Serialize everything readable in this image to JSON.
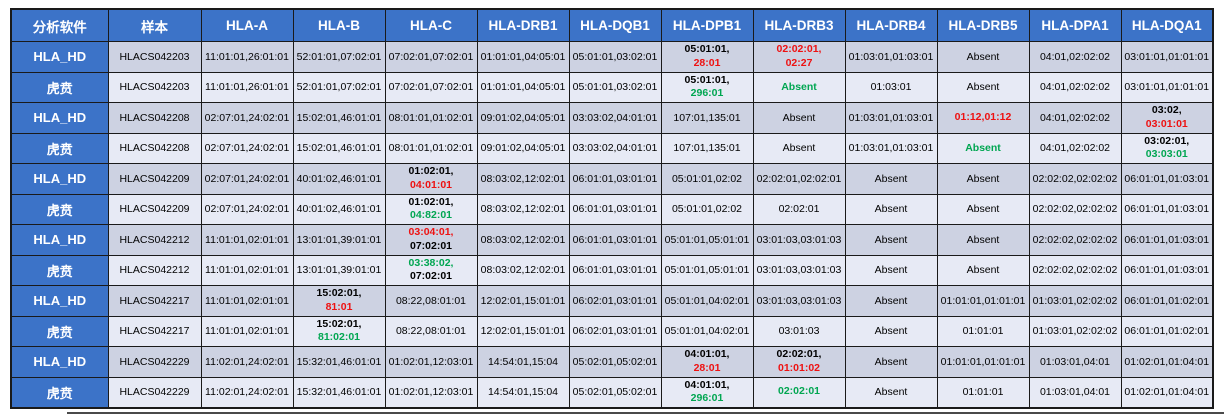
{
  "colors": {
    "header_bg": "#3C73C8",
    "header_text": "#FFFFFF",
    "row_dark": "#CDD2E2",
    "row_light": "#E7EAF5",
    "border": "#1A1A1A",
    "text": "#000000",
    "red": "#EE1111",
    "green": "#00A651"
  },
  "chart_data": {
    "type": "table",
    "title": "",
    "columns": [
      "分析软件",
      "样本",
      "HLA-A",
      "HLA-B",
      "HLA-C",
      "HLA-DRB1",
      "HLA-DQB1",
      "HLA-DPB1",
      "HLA-DRB3",
      "HLA-DRB4",
      "HLA-DRB5",
      "HLA-DPA1",
      "HLA-DQA1"
    ],
    "style_legend": {
      "plain": "normal black",
      "bold": "bold black",
      "red": "bold red (discordant call)",
      "green": "bold green (alternate call)"
    },
    "rows": [
      {
        "software": "HLA_HD",
        "sample": "HLACS042203",
        "cells": [
          "11:01:01,26:01:01",
          "52:01:01,07:02:01",
          "07:02:01,07:02:01",
          "01:01:01,04:05:01",
          "05:01:01,03:02:01",
          [
            {
              "t": "05:01:01,",
              "s": "bold"
            },
            {
              "t": "28:01",
              "s": "red"
            }
          ],
          [
            {
              "t": "02:02:01,",
              "s": "red"
            },
            {
              "t": "02:27",
              "s": "red"
            }
          ],
          "01:03:01,01:03:01",
          "Absent",
          "04:01,02:02:02",
          "03:01:01,01:01:01"
        ]
      },
      {
        "software": "虎贲",
        "sample": "HLACS042203",
        "cells": [
          "11:01:01,26:01:01",
          "52:01:01,07:02:01",
          "07:02:01,07:02:01",
          "01:01:01,04:05:01",
          "05:01:01,03:02:01",
          [
            {
              "t": "05:01:01,",
              "s": "bold"
            },
            {
              "t": "296:01",
              "s": "green"
            }
          ],
          [
            {
              "t": "Absent",
              "s": "green"
            }
          ],
          "01:03:01",
          "Absent",
          "04:01,02:02:02",
          "03:01:01,01:01:01"
        ]
      },
      {
        "software": "HLA_HD",
        "sample": "HLACS042208",
        "cells": [
          "02:07:01,24:02:01",
          "15:02:01,46:01:01",
          "08:01:01,01:02:01",
          "09:01:02,04:05:01",
          "03:03:02,04:01:01",
          "107:01,135:01",
          "Absent",
          "01:03:01,01:03:01",
          [
            {
              "t": "01:12,01:12",
              "s": "red"
            }
          ],
          "04:01,02:02:02",
          [
            {
              "t": "03:02,",
              "s": "bold"
            },
            {
              "t": "03:01:01",
              "s": "red"
            }
          ]
        ]
      },
      {
        "software": "虎贲",
        "sample": "HLACS042208",
        "cells": [
          "02:07:01,24:02:01",
          "15:02:01,46:01:01",
          "08:01:01,01:02:01",
          "09:01:02,04:05:01",
          "03:03:02,04:01:01",
          "107:01,135:01",
          "Absent",
          "01:03:01,01:03:01",
          [
            {
              "t": "Absent",
              "s": "green"
            }
          ],
          "04:01,02:02:02",
          [
            {
              "t": "03:02:01,",
              "s": "bold"
            },
            {
              "t": "03:03:01",
              "s": "green"
            }
          ]
        ]
      },
      {
        "software": "HLA_HD",
        "sample": "HLACS042209",
        "cells": [
          "02:07:01,24:02:01",
          "40:01:02,46:01:01",
          [
            {
              "t": "01:02:01,",
              "s": "bold"
            },
            {
              "t": "04:01:01",
              "s": "red"
            }
          ],
          "08:03:02,12:02:01",
          "06:01:01,03:01:01",
          "05:01:01,02:02",
          "02:02:01,02:02:01",
          "Absent",
          "Absent",
          "02:02:02,02:02:02",
          "06:01:01,01:03:01"
        ]
      },
      {
        "software": "虎贲",
        "sample": "HLACS042209",
        "cells": [
          "02:07:01,24:02:01",
          "40:01:02,46:01:01",
          [
            {
              "t": "01:02:01,",
              "s": "bold"
            },
            {
              "t": "04:82:01",
              "s": "green"
            }
          ],
          "08:03:02,12:02:01",
          "06:01:01,03:01:01",
          "05:01:01,02:02",
          "02:02:01",
          "Absent",
          "Absent",
          "02:02:02,02:02:02",
          "06:01:01,01:03:01"
        ]
      },
      {
        "software": "HLA_HD",
        "sample": "HLACS042212",
        "cells": [
          "11:01:01,02:01:01",
          "13:01:01,39:01:01",
          [
            {
              "t": "03:04:01,",
              "s": "red"
            },
            {
              "t": "07:02:01",
              "s": "bold"
            }
          ],
          "08:03:02,12:02:01",
          "06:01:01,03:01:01",
          "05:01:01,05:01:01",
          "03:01:03,03:01:03",
          "Absent",
          "Absent",
          "02:02:02,02:02:02",
          "06:01:01,01:03:01"
        ]
      },
      {
        "software": "虎贲",
        "sample": "HLACS042212",
        "cells": [
          "11:01:01,02:01:01",
          "13:01:01,39:01:01",
          [
            {
              "t": "03:38:02,",
              "s": "green"
            },
            {
              "t": "07:02:01",
              "s": "bold"
            }
          ],
          "08:03:02,12:02:01",
          "06:01:01,03:01:01",
          "05:01:01,05:01:01",
          "03:01:03,03:01:03",
          "Absent",
          "Absent",
          "02:02:02,02:02:02",
          "06:01:01,01:03:01"
        ]
      },
      {
        "software": "HLA_HD",
        "sample": "HLACS042217",
        "cells": [
          "11:01:01,02:01:01",
          [
            {
              "t": "15:02:01,",
              "s": "bold"
            },
            {
              "t": "81:01",
              "s": "red"
            }
          ],
          "08:22,08:01:01",
          "12:02:01,15:01:01",
          "06:02:01,03:01:01",
          "05:01:01,04:02:01",
          "03:01:03,03:01:03",
          "Absent",
          "01:01:01,01:01:01",
          "01:03:01,02:02:02",
          "06:01:01,01:02:01"
        ]
      },
      {
        "software": "虎贲",
        "sample": "HLACS042217",
        "cells": [
          "11:01:01,02:01:01",
          [
            {
              "t": "15:02:01,",
              "s": "bold"
            },
            {
              "t": "81:02:01",
              "s": "green"
            }
          ],
          "08:22,08:01:01",
          "12:02:01,15:01:01",
          "06:02:01,03:01:01",
          "05:01:01,04:02:01",
          "03:01:03",
          "Absent",
          "01:01:01",
          "01:03:01,02:02:02",
          "06:01:01,01:02:01"
        ]
      },
      {
        "software": "HLA_HD",
        "sample": "HLACS042229",
        "cells": [
          "11:02:01,24:02:01",
          "15:32:01,46:01:01",
          "01:02:01,12:03:01",
          "14:54:01,15:04",
          "05:02:01,05:02:01",
          [
            {
              "t": "04:01:01,",
              "s": "bold"
            },
            {
              "t": "28:01",
              "s": "red"
            }
          ],
          [
            {
              "t": "02:02:01,",
              "s": "bold"
            },
            {
              "t": "01:01:02",
              "s": "red"
            }
          ],
          "Absent",
          "01:01:01,01:01:01",
          "01:03:01,04:01",
          "01:02:01,01:04:01"
        ]
      },
      {
        "software": "虎贲",
        "sample": "HLACS042229",
        "cells": [
          "11:02:01,24:02:01",
          "15:32:01,46:01:01",
          "01:02:01,12:03:01",
          "14:54:01,15:04",
          "05:02:01,05:02:01",
          [
            {
              "t": "04:01:01,",
              "s": "bold"
            },
            {
              "t": "296:01",
              "s": "green"
            }
          ],
          [
            {
              "t": "02:02:01",
              "s": "green"
            }
          ],
          "Absent",
          "01:01:01",
          "01:03:01,04:01",
          "01:02:01,01:04:01"
        ]
      }
    ]
  }
}
